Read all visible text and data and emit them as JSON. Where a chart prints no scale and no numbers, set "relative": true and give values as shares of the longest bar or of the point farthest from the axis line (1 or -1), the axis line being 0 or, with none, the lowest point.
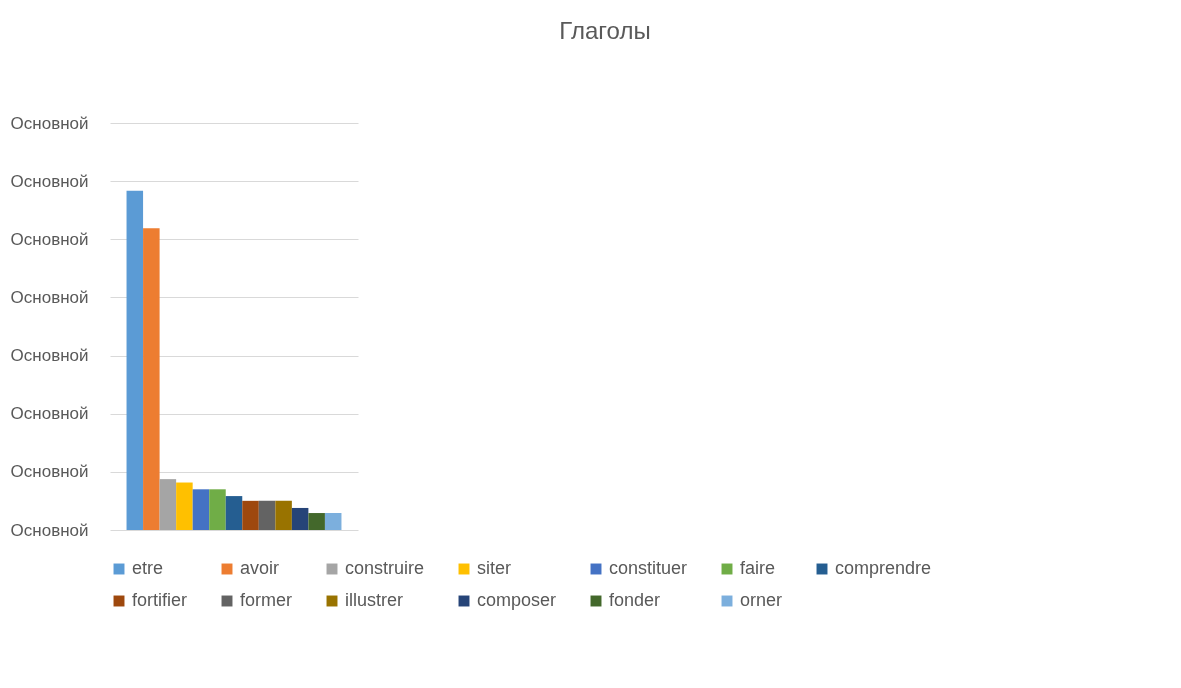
{
  "chart_data": {
    "type": "bar",
    "title": "Глаголы",
    "categories": [
      null
    ],
    "relative": true,
    "annotations": [
      "Основной",
      "Основной",
      "Основной",
      "Основной",
      "Основной",
      "Основной",
      "Основной",
      "Основной"
    ],
    "grid": "y",
    "legend": "bottom",
    "tick_labels": "y",
    "series": [
      {
        "name": "etre",
        "color": "#5b9bd5",
        "values": [
          1
        ]
      },
      {
        "name": "avoir",
        "color": "#ed7d31",
        "values": [
          0.89
        ]
      },
      {
        "name": "construire",
        "color": "#a5a5a5",
        "values": [
          0.15
        ]
      },
      {
        "name": "siter",
        "color": "#ffc000",
        "values": [
          0.14
        ]
      },
      {
        "name": "constituer",
        "color": "#4472c4",
        "values": [
          0.12
        ]
      },
      {
        "name": "faire",
        "color": "#70ad47",
        "values": [
          0.12
        ]
      },
      {
        "name": "comprendre",
        "color": "#255e91",
        "values": [
          0.1
        ]
      },
      {
        "name": "fortifier",
        "color": "#9e480e",
        "values": [
          0.086
        ]
      },
      {
        "name": "former",
        "color": "#636363",
        "values": [
          0.086
        ]
      },
      {
        "name": "illustrer",
        "color": "#997300",
        "values": [
          0.086
        ]
      },
      {
        "name": "composer",
        "color": "#264478",
        "values": [
          0.065
        ]
      },
      {
        "name": "fonder",
        "color": "#43682b",
        "values": [
          0.05
        ]
      },
      {
        "name": "orner",
        "color": "#7cafdd",
        "values": [
          0.05
        ]
      }
    ]
  }
}
